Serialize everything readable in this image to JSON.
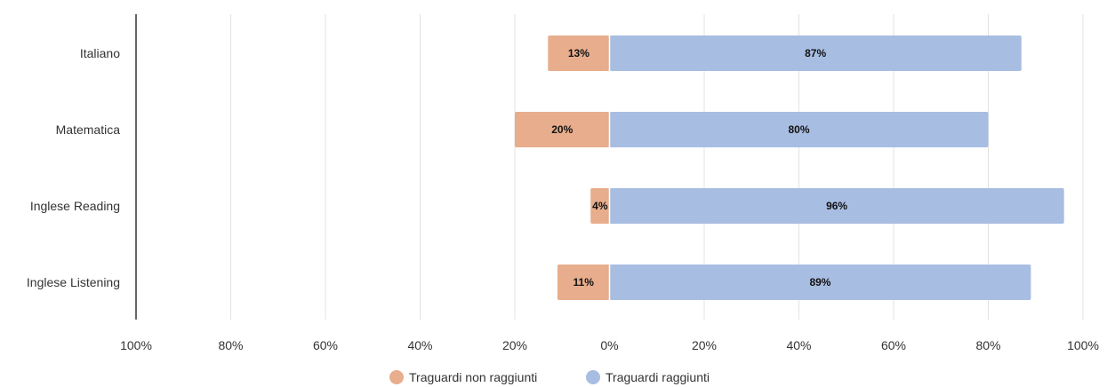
{
  "chart_data": {
    "type": "bar",
    "orientation": "horizontal",
    "layout": "diverging",
    "categories": [
      "Italiano",
      "Matematica",
      "Inglese Reading",
      "Inglese Listening"
    ],
    "series": [
      {
        "name": "Traguardi non raggiunti",
        "values": [
          13,
          20,
          4,
          11
        ],
        "labels": [
          "13%",
          "20%",
          "4%",
          "11%"
        ],
        "color": "#e7ad8c",
        "side": "left"
      },
      {
        "name": "Traguardi raggiunti",
        "values": [
          87,
          80,
          96,
          89
        ],
        "labels": [
          "87%",
          "80%",
          "96%",
          "89%"
        ],
        "color": "#a8bde2",
        "side": "right"
      }
    ],
    "xlim": [
      -100,
      100
    ],
    "xticks": [
      -100,
      -80,
      -60,
      -40,
      -20,
      0,
      20,
      40,
      60,
      80,
      100
    ],
    "xtick_labels": [
      "100%",
      "80%",
      "60%",
      "40%",
      "20%",
      "0%",
      "20%",
      "40%",
      "60%",
      "80%",
      "100%"
    ],
    "grid": true,
    "legend_position": "bottom-center",
    "title": "",
    "xlabel": "",
    "ylabel": ""
  }
}
